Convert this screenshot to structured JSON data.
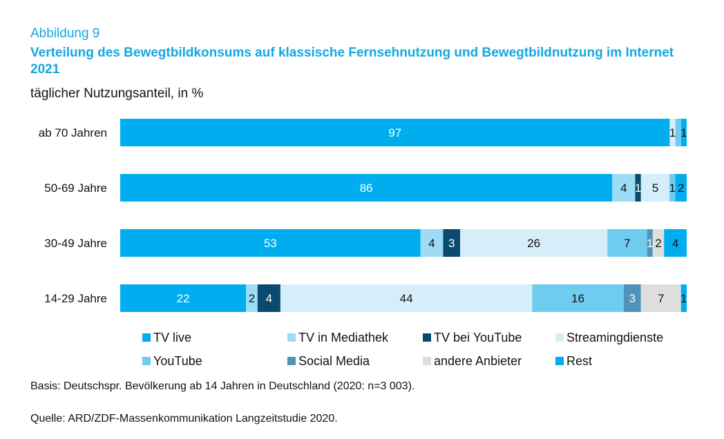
{
  "figure_label": "Abbildung 9",
  "title": "Verteilung des Bewegtbildkonsums auf klassische Fernsehnutzung und Bewegtbildnutzung im Internet 2021",
  "subtitle": "täglicher Nutzungsanteil, in %",
  "basis": "Basis: Deutschspr. Bevölkerung ab 14 Jahren in Deutschland (2020: n=3 003).",
  "source": "Quelle: ARD/ZDF-Massenkommunikation Langzeitstudie 2020.",
  "colors": {
    "tv_live": "#00aeef",
    "tv_mediathek": "#9edcf5",
    "tv_youtube": "#0a4a6e",
    "streaming": "#d6eef9",
    "youtube": "#6fcbf0",
    "social_media": "#4f93b8",
    "andere": "#dedede",
    "rest": "#00aeef"
  },
  "chart_data": {
    "type": "bar",
    "orientation": "horizontal",
    "stacked": true,
    "title": "Verteilung des Bewegtbildkonsums auf klassische Fernsehnutzung und Bewegtbildnutzung im Internet 2021",
    "subtitle": "täglicher Nutzungsanteil, in %",
    "categories": [
      "ab 70 Jahren",
      "50-69 Jahre",
      "30-49 Jahre",
      "14-29 Jahre"
    ],
    "xlim": [
      0,
      100
    ],
    "grid": false,
    "legend_position": "bottom",
    "series": [
      {
        "name": "TV live",
        "color_key": "tv_live",
        "text_color": "#ffffff",
        "values": [
          97,
          86,
          53,
          22
        ]
      },
      {
        "name": "TV in Mediathek",
        "color_key": "tv_mediathek",
        "text_color": "#111111",
        "values": [
          0,
          4,
          4,
          2
        ]
      },
      {
        "name": "TV bei YouTube",
        "color_key": "tv_youtube",
        "text_color": "#ffffff",
        "values": [
          0,
          1,
          3,
          4
        ]
      },
      {
        "name": "Streamingdienste",
        "color_key": "streaming",
        "text_color": "#111111",
        "values": [
          1,
          5,
          26,
          44
        ]
      },
      {
        "name": "YouTube",
        "color_key": "youtube",
        "text_color": "#111111",
        "values": [
          1,
          1,
          7,
          16
        ]
      },
      {
        "name": "Social Media",
        "color_key": "social_media",
        "text_color": "#ffffff",
        "values": [
          0,
          0,
          1,
          3
        ]
      },
      {
        "name": "andere Anbieter",
        "color_key": "andere",
        "text_color": "#111111",
        "values": [
          0,
          0,
          2,
          7
        ]
      },
      {
        "name": "Rest",
        "color_key": "rest",
        "text_color": "#111111",
        "values": [
          1,
          2,
          4,
          1
        ]
      }
    ],
    "data_labels": [
      [
        "97",
        "",
        "",
        "1",
        "",
        "",
        "",
        "1"
      ],
      [
        "86",
        "4",
        "1",
        "5",
        "1",
        "",
        "",
        "2"
      ],
      [
        "53",
        "4",
        "3",
        "26",
        "7",
        "1",
        "2",
        "4"
      ],
      [
        "22",
        "2",
        "4",
        "44",
        "16",
        "3",
        "7",
        "1"
      ]
    ]
  }
}
